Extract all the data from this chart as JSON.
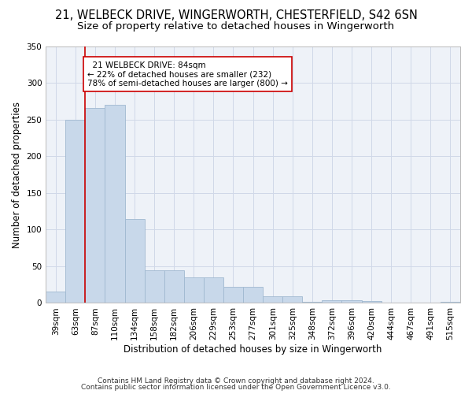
{
  "title_line1": "21, WELBECK DRIVE, WINGERWORTH, CHESTERFIELD, S42 6SN",
  "title_line2": "Size of property relative to detached houses in Wingerworth",
  "xlabel": "Distribution of detached houses by size in Wingerworth",
  "ylabel": "Number of detached properties",
  "bar_color": "#c8d8ea",
  "bar_edge_color": "#a0b8d0",
  "categories": [
    "39sqm",
    "63sqm",
    "87sqm",
    "110sqm",
    "134sqm",
    "158sqm",
    "182sqm",
    "206sqm",
    "229sqm",
    "253sqm",
    "277sqm",
    "301sqm",
    "325sqm",
    "348sqm",
    "372sqm",
    "396sqm",
    "420sqm",
    "444sqm",
    "467sqm",
    "491sqm",
    "515sqm"
  ],
  "values": [
    16,
    250,
    266,
    270,
    115,
    45,
    45,
    35,
    35,
    22,
    22,
    9,
    9,
    2,
    4,
    4,
    3,
    0,
    0,
    0,
    2
  ],
  "ylim": [
    0,
    350
  ],
  "yticks": [
    0,
    50,
    100,
    150,
    200,
    250,
    300,
    350
  ],
  "property_line_x": 1.5,
  "property_line_color": "#cc0000",
  "annotation_text": "  21 WELBECK DRIVE: 84sqm\n← 22% of detached houses are smaller (232)\n78% of semi-detached houses are larger (800) →",
  "annotation_box_color": "#ffffff",
  "annotation_box_edge_color": "#cc0000",
  "grid_color": "#d0d8e8",
  "background_color": "#eef2f8",
  "footer_line1": "Contains HM Land Registry data © Crown copyright and database right 2024.",
  "footer_line2": "Contains public sector information licensed under the Open Government Licence v3.0.",
  "title_fontsize": 10.5,
  "subtitle_fontsize": 9.5,
  "axis_label_fontsize": 8.5,
  "tick_fontsize": 7.5,
  "annotation_fontsize": 7.5,
  "footer_fontsize": 6.5
}
